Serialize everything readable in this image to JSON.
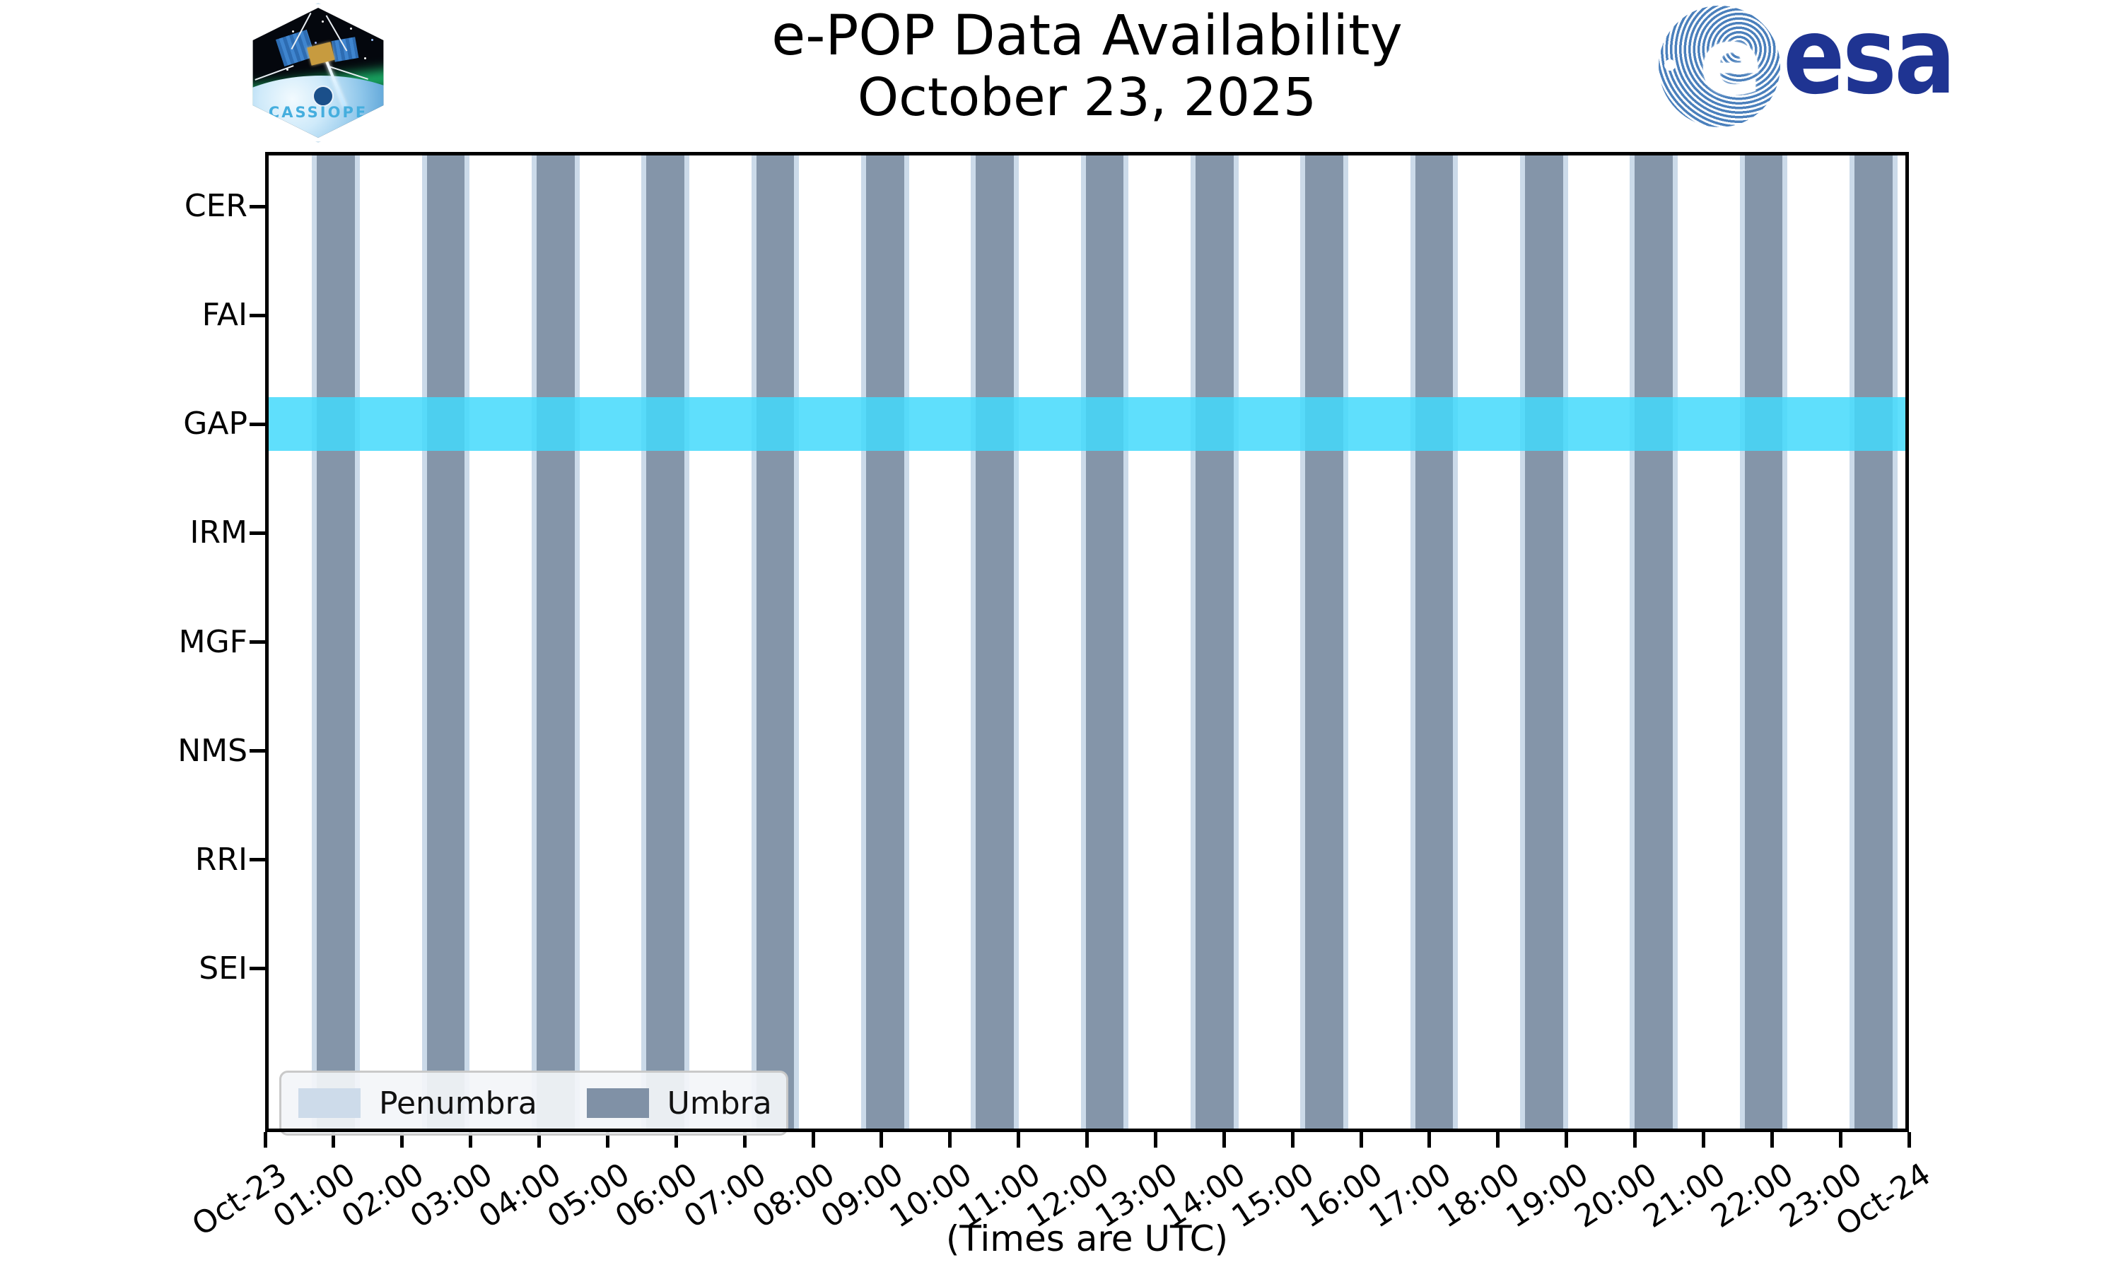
{
  "figure": {
    "title_line1": "e-POP Data Availability",
    "title_line2": "October 23, 2025",
    "x_axis_note": "(Times are UTC)"
  },
  "cassiope_patch": {
    "name": "CASSIOPE"
  },
  "esa_logo": {
    "wordmark": "esa",
    "globe_letter": "e"
  },
  "chart_data": {
    "type": "availability-timeline",
    "title": "e-POP Data Availability",
    "subtitle": "October 23, 2025",
    "x_axis": {
      "unit_note": "(Times are UTC)",
      "range_hours": [
        0,
        24
      ],
      "tick_interval_hours": 1,
      "tick_labels": [
        "Oct-23",
        "01:00",
        "02:00",
        "03:00",
        "04:00",
        "05:00",
        "06:00",
        "07:00",
        "08:00",
        "09:00",
        "10:00",
        "11:00",
        "12:00",
        "13:00",
        "14:00",
        "15:00",
        "16:00",
        "17:00",
        "18:00",
        "19:00",
        "20:00",
        "21:00",
        "22:00",
        "23:00",
        "Oct-24"
      ]
    },
    "y_axis": {
      "categories": [
        "CER",
        "FAI",
        "GAP",
        "IRM",
        "MGF",
        "NMS",
        "RRI",
        "SEI"
      ]
    },
    "availability": [
      {
        "instrument": "GAP",
        "intervals_hours": [
          [
            0,
            24
          ]
        ],
        "color": "#43D9FB",
        "opacity": 0.85
      }
    ],
    "umbra": {
      "label": "Umbra",
      "color": "#8495A9",
      "intervals_hours": [
        [
          0.75,
          1.31
        ],
        [
          2.36,
          2.91
        ],
        [
          3.96,
          4.52
        ],
        [
          5.56,
          6.12
        ],
        [
          7.17,
          7.72
        ],
        [
          8.77,
          9.33
        ],
        [
          10.37,
          10.93
        ],
        [
          11.98,
          12.53
        ],
        [
          13.58,
          14.14
        ],
        [
          15.18,
          15.74
        ],
        [
          16.79,
          17.34
        ],
        [
          18.39,
          18.95
        ],
        [
          19.99,
          20.55
        ],
        [
          21.6,
          22.15
        ],
        [
          23.2,
          23.76
        ]
      ]
    },
    "penumbra": {
      "label": "Penumbra",
      "color": "#CBDAE9",
      "edge_width_hours": 0.07
    },
    "legend": {
      "items": [
        {
          "label": "Penumbra",
          "color": "#CDDBEA"
        },
        {
          "label": "Umbra",
          "color": "#8091A6"
        }
      ]
    }
  }
}
